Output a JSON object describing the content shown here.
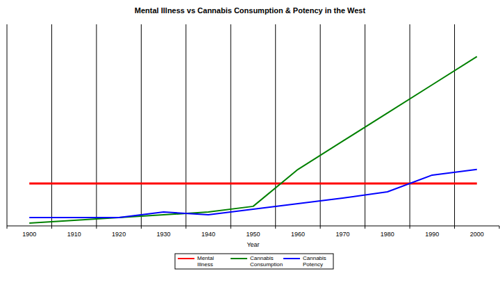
{
  "chart_data": {
    "type": "line",
    "title": "Mental Illness vs Cannabis Consumption & Potency in the West",
    "x_label": "Year",
    "categories": [
      "1900",
      "1910",
      "1920",
      "1930",
      "1940",
      "1950",
      "1960",
      "1970",
      "1980",
      "1990",
      "2000"
    ],
    "series": [
      {
        "name": "Mental Illness",
        "color": "#ff0000",
        "values": [
          21,
          21,
          21,
          21,
          21,
          21,
          21,
          21,
          21,
          21,
          21
        ]
      },
      {
        "name": "Cannabis Consumption",
        "color": "#008000",
        "values": [
          1.4,
          2.8,
          4.1,
          5.5,
          6.9,
          9.7,
          28,
          42,
          56,
          70,
          84
        ]
      },
      {
        "name": "Cannabis Potency",
        "color": "#0000ff",
        "values": [
          4.1,
          4.1,
          4.1,
          6.9,
          5.5,
          8.3,
          11,
          13.8,
          16.9,
          25.2,
          28
        ]
      }
    ],
    "ylim": [
      0,
      100
    ],
    "grid": true,
    "legend": "bottom",
    "tick_labels": "x"
  }
}
